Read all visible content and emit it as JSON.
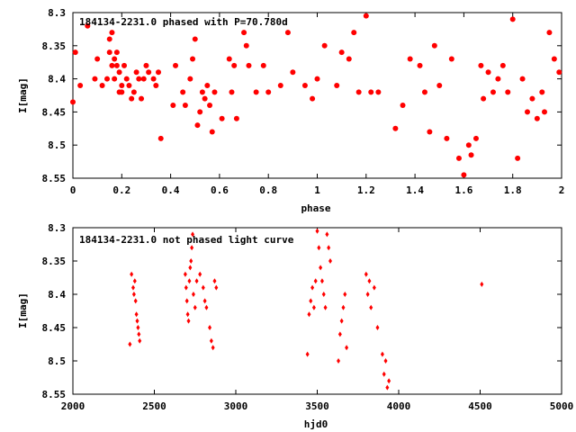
{
  "chart_data": [
    {
      "type": "scatter",
      "title": "184134-2231.0 phased with P=70.780d",
      "xlabel": "phase",
      "ylabel": "I[mag]",
      "xlim": [
        0,
        2
      ],
      "ylim": [
        8.55,
        8.3
      ],
      "y_inverted": true,
      "xticks": [
        0,
        0.2,
        0.4,
        0.6,
        0.8,
        1,
        1.2,
        1.4,
        1.6,
        1.8,
        2
      ],
      "xtick_labels": [
        "0",
        "0.2",
        "0.4",
        "0.6",
        "0.8",
        "1",
        "1.2",
        "1.4",
        "1.6",
        "1.8",
        "2"
      ],
      "yticks": [
        8.3,
        8.35,
        8.4,
        8.45,
        8.5,
        8.55
      ],
      "ytick_labels": [
        "8.3",
        "8.35",
        "8.4",
        "8.45",
        "8.5",
        "8.55"
      ],
      "grid": false,
      "marker_color": "#ff0000",
      "marker": "star",
      "x": [
        0.0,
        0.01,
        0.03,
        0.06,
        0.09,
        0.1,
        0.12,
        0.14,
        0.15,
        0.15,
        0.16,
        0.16,
        0.17,
        0.17,
        0.18,
        0.18,
        0.19,
        0.19,
        0.2,
        0.2,
        0.21,
        0.22,
        0.23,
        0.24,
        0.25,
        0.26,
        0.27,
        0.28,
        0.29,
        0.3,
        0.31,
        0.33,
        0.34,
        0.35,
        0.36,
        0.41,
        0.42,
        0.45,
        0.46,
        0.48,
        0.49,
        0.5,
        0.51,
        0.52,
        0.53,
        0.54,
        0.55,
        0.56,
        0.57,
        0.58,
        0.61,
        0.64,
        0.65,
        0.66,
        0.67,
        0.7,
        0.71,
        0.72,
        0.75,
        0.78,
        0.8,
        0.85,
        0.88,
        0.9,
        0.95,
        0.98,
        1.0,
        1.03,
        1.08,
        1.1,
        1.13,
        1.15,
        1.17,
        1.2,
        1.22,
        1.25,
        1.32,
        1.35,
        1.38,
        1.42,
        1.44,
        1.46,
        1.48,
        1.5,
        1.53,
        1.55,
        1.58,
        1.6,
        1.62,
        1.63,
        1.65,
        1.67,
        1.68,
        1.7,
        1.72,
        1.74,
        1.76,
        1.78,
        1.8,
        1.82,
        1.84,
        1.86,
        1.88,
        1.9,
        1.92,
        1.93,
        1.95,
        1.97,
        1.99
      ],
      "y": [
        8.435,
        8.36,
        8.41,
        8.32,
        8.4,
        8.37,
        8.41,
        8.4,
        8.36,
        8.34,
        8.38,
        8.33,
        8.37,
        8.4,
        8.38,
        8.36,
        8.42,
        8.39,
        8.42,
        8.41,
        8.38,
        8.4,
        8.41,
        8.43,
        8.42,
        8.39,
        8.4,
        8.43,
        8.4,
        8.38,
        8.39,
        8.4,
        8.41,
        8.39,
        8.49,
        8.44,
        8.38,
        8.42,
        8.44,
        8.4,
        8.37,
        8.34,
        8.47,
        8.45,
        8.42,
        8.43,
        8.41,
        8.44,
        8.48,
        8.42,
        8.46,
        8.37,
        8.42,
        8.38,
        8.46,
        8.33,
        8.35,
        8.38,
        8.42,
        8.38,
        8.42,
        8.41,
        8.33,
        8.39,
        8.41,
        8.43,
        8.4,
        8.35,
        8.41,
        8.36,
        8.37,
        8.33,
        8.42,
        8.305,
        8.42,
        8.42,
        8.475,
        8.44,
        8.37,
        8.38,
        8.42,
        8.48,
        8.35,
        8.41,
        8.49,
        8.37,
        8.52,
        8.545,
        8.5,
        8.515,
        8.49,
        8.38,
        8.43,
        8.39,
        8.42,
        8.4,
        8.38,
        8.42,
        8.31,
        8.52,
        8.4,
        8.45,
        8.43,
        8.46,
        8.42,
        8.45,
        8.33,
        8.37,
        8.39
      ]
    },
    {
      "type": "scatter",
      "title": "184134-2231.0 not phased light curve",
      "xlabel": "hjd0",
      "ylabel": "I[mag]",
      "xlim": [
        2000,
        5000
      ],
      "ylim": [
        8.55,
        8.3
      ],
      "y_inverted": true,
      "xticks": [
        2000,
        2500,
        3000,
        3500,
        4000,
        4500,
        5000
      ],
      "xtick_labels": [
        "2000",
        "2500",
        "3000",
        "3500",
        "4000",
        "4500",
        "5000"
      ],
      "yticks": [
        8.3,
        8.35,
        8.4,
        8.45,
        8.5,
        8.55
      ],
      "ytick_labels": [
        "8.3",
        "8.35",
        "8.4",
        "8.45",
        "8.5",
        "8.55"
      ],
      "grid": false,
      "marker_color": "#ff0000",
      "marker": "diamond",
      "x": [
        2350,
        2360,
        2370,
        2375,
        2380,
        2385,
        2390,
        2395,
        2400,
        2405,
        2410,
        2690,
        2695,
        2700,
        2705,
        2710,
        2715,
        2720,
        2725,
        2730,
        2735,
        2740,
        2750,
        2760,
        2780,
        2800,
        2810,
        2820,
        2840,
        2850,
        2860,
        2870,
        2880,
        3440,
        3450,
        3460,
        3470,
        3480,
        3490,
        3500,
        3510,
        3520,
        3530,
        3540,
        3550,
        3560,
        3570,
        3580,
        3630,
        3640,
        3650,
        3660,
        3670,
        3680,
        3800,
        3810,
        3820,
        3830,
        3850,
        3870,
        3900,
        3910,
        3920,
        3930,
        3940,
        4510
      ],
      "y": [
        8.475,
        8.37,
        8.39,
        8.4,
        8.38,
        8.41,
        8.43,
        8.44,
        8.45,
        8.46,
        8.47,
        8.37,
        8.39,
        8.41,
        8.43,
        8.44,
        8.38,
        8.36,
        8.35,
        8.33,
        8.31,
        8.4,
        8.42,
        8.38,
        8.37,
        8.39,
        8.41,
        8.42,
        8.45,
        8.47,
        8.48,
        8.38,
        8.39,
        8.49,
        8.43,
        8.41,
        8.39,
        8.42,
        8.38,
        8.305,
        8.33,
        8.36,
        8.38,
        8.4,
        8.42,
        8.31,
        8.33,
        8.35,
        8.5,
        8.46,
        8.44,
        8.42,
        8.4,
        8.48,
        8.37,
        8.4,
        8.38,
        8.42,
        8.39,
        8.45,
        8.49,
        8.52,
        8.5,
        8.54,
        8.53,
        8.385
      ]
    }
  ]
}
